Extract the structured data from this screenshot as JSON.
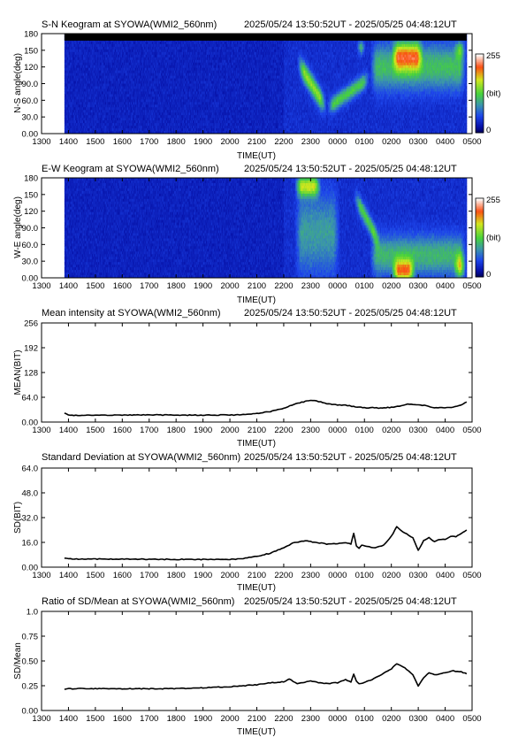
{
  "time_range_label": "2025/05/24 13:50:52UT - 2025/05/25 04:48:12UT",
  "x_ticks": [
    "1300",
    "1400",
    "1500",
    "1600",
    "1700",
    "1800",
    "1900",
    "2000",
    "2100",
    "2200",
    "2300",
    "0000",
    "0100",
    "0200",
    "0300",
    "0400",
    "0500"
  ],
  "colorbar": {
    "min_label": "0",
    "max_label": "255",
    "unit_label": "(bit)"
  },
  "chart_data": [
    {
      "id": "sn",
      "type": "heatmap",
      "title": "S-N Keogram at SYOWA(WMI2_560nm)",
      "xlabel": "TIME(UT)",
      "ylabel": "N-S angle(deg)",
      "ylim": [
        0,
        180
      ],
      "yticks": [
        "0.00",
        "30.0",
        "60.0",
        "90.0",
        "120",
        "150",
        "180"
      ],
      "xlim_hours": [
        13.0,
        29.0
      ],
      "data_start_hour": 13.85,
      "data_end_hour": 28.8,
      "colorscale": {
        "min": 0,
        "max": 255
      },
      "features": [
        {
          "kind": "arc",
          "start": 22.5,
          "end": 23.6,
          "center_start": 130,
          "center_end": 45,
          "halfwidth": 18,
          "intensity": 110
        },
        {
          "kind": "arc",
          "start": 23.6,
          "end": 25.2,
          "center_start": 45,
          "center_end": 100,
          "halfwidth": 14,
          "intensity": 85
        },
        {
          "kind": "band",
          "start": 24.7,
          "end": 25.05,
          "center": 155,
          "halfwidth": 12,
          "intensity": 105
        },
        {
          "kind": "band",
          "start": 25.2,
          "end": 28.8,
          "center": 120,
          "halfwidth": 40,
          "intensity": 75
        },
        {
          "kind": "band",
          "start": 26.0,
          "end": 27.2,
          "center": 140,
          "halfwidth": 25,
          "intensity": 120
        },
        {
          "kind": "band",
          "start": 28.3,
          "end": 28.8,
          "center": 150,
          "halfwidth": 15,
          "intensity": 60
        }
      ]
    },
    {
      "id": "ew",
      "type": "heatmap",
      "title": "E-W Keogram at SYOWA(WMI2_560nm)",
      "xlabel": "TIME(UT)",
      "ylabel": "W-E angle(deg)",
      "ylim": [
        0,
        180
      ],
      "yticks": [
        "0.00",
        "30.0",
        "60.0",
        "90.0",
        "120",
        "150",
        "180"
      ],
      "xlim_hours": [
        13.0,
        29.0
      ],
      "data_start_hour": 13.85,
      "data_end_hour": 28.8,
      "colorscale": {
        "min": 0,
        "max": 255
      },
      "features": [
        {
          "kind": "band",
          "start": 22.4,
          "end": 23.4,
          "center": 165,
          "halfwidth": 18,
          "intensity": 120
        },
        {
          "kind": "band",
          "start": 22.4,
          "end": 24.1,
          "center": 80,
          "halfwidth": 70,
          "intensity": 55
        },
        {
          "kind": "arc",
          "start": 24.6,
          "end": 25.6,
          "center_start": 150,
          "center_end": 60,
          "halfwidth": 16,
          "intensity": 85
        },
        {
          "kind": "band",
          "start": 25.2,
          "end": 28.8,
          "center": 40,
          "halfwidth": 35,
          "intensity": 70
        },
        {
          "kind": "band",
          "start": 26.0,
          "end": 26.9,
          "center": 12,
          "halfwidth": 20,
          "intensity": 135
        },
        {
          "kind": "band",
          "start": 28.3,
          "end": 28.8,
          "center": 20,
          "halfwidth": 20,
          "intensity": 100
        }
      ]
    },
    {
      "id": "mean",
      "type": "line",
      "title": "Mean intensity at SYOWA(WMI2_560nm)",
      "xlabel": "TIME(UT)",
      "ylabel": "MEAN(BIT)",
      "ylim": [
        0,
        256
      ],
      "yticks": [
        "0.00",
        "64.0",
        "128",
        "192",
        "256"
      ],
      "xlim_hours": [
        13.0,
        29.0
      ],
      "series": [
        {
          "x": [
            13.85,
            14.0,
            14.2,
            14.5,
            15.0,
            15.5,
            16.0,
            16.5,
            17.0,
            17.5,
            18.0,
            18.5,
            19.0,
            19.5,
            20.0,
            20.5,
            21.0,
            21.5,
            22.0,
            22.3,
            22.6,
            23.0,
            23.3,
            23.6,
            24.0,
            24.3,
            24.6,
            25.0,
            25.3,
            25.6,
            26.0,
            26.3,
            26.6,
            27.0,
            27.3,
            27.6,
            28.0,
            28.3,
            28.6,
            28.8
          ],
          "y": [
            22,
            19,
            17,
            17,
            18,
            18,
            18,
            18,
            19,
            18,
            18,
            18,
            18,
            18,
            18,
            19,
            22,
            27,
            36,
            44,
            50,
            57,
            53,
            48,
            44,
            44,
            40,
            37,
            37,
            36,
            38,
            41,
            46,
            45,
            42,
            37,
            37,
            38,
            44,
            52
          ]
        }
      ]
    },
    {
      "id": "sd",
      "type": "line",
      "title": "Standard Deviation at SYOWA(WMI2_560nm)",
      "xlabel": "TIME(UT)",
      "ylabel": "SD(BIT)",
      "ylim": [
        0,
        64
      ],
      "yticks": [
        "0.00",
        "16.0",
        "32.0",
        "48.0",
        "64.0"
      ],
      "xlim_hours": [
        13.0,
        29.0
      ],
      "series": [
        {
          "x": [
            13.85,
            14.0,
            14.3,
            15.0,
            16.0,
            17.0,
            18.0,
            19.0,
            20.0,
            20.5,
            21.0,
            21.5,
            22.0,
            22.4,
            22.8,
            23.2,
            23.6,
            24.0,
            24.3,
            24.5,
            24.6,
            24.7,
            24.8,
            24.9,
            25.1,
            25.4,
            25.7,
            26.0,
            26.2,
            26.5,
            26.8,
            27.0,
            27.2,
            27.4,
            27.6,
            27.8,
            28.0,
            28.2,
            28.4,
            28.6,
            28.8
          ],
          "y": [
            6.0,
            5.5,
            5.2,
            5.3,
            5.2,
            5.1,
            5.0,
            5.0,
            5.0,
            5.5,
            7.0,
            9.0,
            12.5,
            16.0,
            17.0,
            16.0,
            15.0,
            15.0,
            16.0,
            15.0,
            22.0,
            14.0,
            12.0,
            14.0,
            13.5,
            12.5,
            14.0,
            20.0,
            26.0,
            22.0,
            19.0,
            11.0,
            17.0,
            19.0,
            16.5,
            18.0,
            18.0,
            20.0,
            19.5,
            22.0,
            24.0
          ]
        }
      ]
    },
    {
      "id": "ratio",
      "type": "line",
      "title": "Ratio of SD/Mean at SYOWA(WMI2_560nm)",
      "xlabel": "TIME(UT)",
      "ylabel": "SD/Mean",
      "ylim": [
        0,
        1.0
      ],
      "yticks": [
        "0.00",
        "0.25",
        "0.50",
        "0.75",
        "1.0"
      ],
      "xlim_hours": [
        13.0,
        29.0
      ],
      "series": [
        {
          "x": [
            13.85,
            14.0,
            14.3,
            15.0,
            16.0,
            17.0,
            18.0,
            19.0,
            20.0,
            20.5,
            21.0,
            21.5,
            22.0,
            22.2,
            22.5,
            23.0,
            23.5,
            24.0,
            24.3,
            24.5,
            24.6,
            24.7,
            24.8,
            25.0,
            25.5,
            26.0,
            26.2,
            26.5,
            26.8,
            27.0,
            27.2,
            27.4,
            27.6,
            28.0,
            28.3,
            28.6,
            28.8
          ],
          "y": [
            0.21,
            0.22,
            0.22,
            0.22,
            0.22,
            0.22,
            0.22,
            0.23,
            0.24,
            0.25,
            0.26,
            0.28,
            0.29,
            0.32,
            0.27,
            0.3,
            0.27,
            0.28,
            0.31,
            0.29,
            0.37,
            0.3,
            0.27,
            0.28,
            0.34,
            0.42,
            0.47,
            0.43,
            0.36,
            0.25,
            0.33,
            0.38,
            0.36,
            0.38,
            0.4,
            0.39,
            0.37
          ]
        }
      ]
    }
  ]
}
